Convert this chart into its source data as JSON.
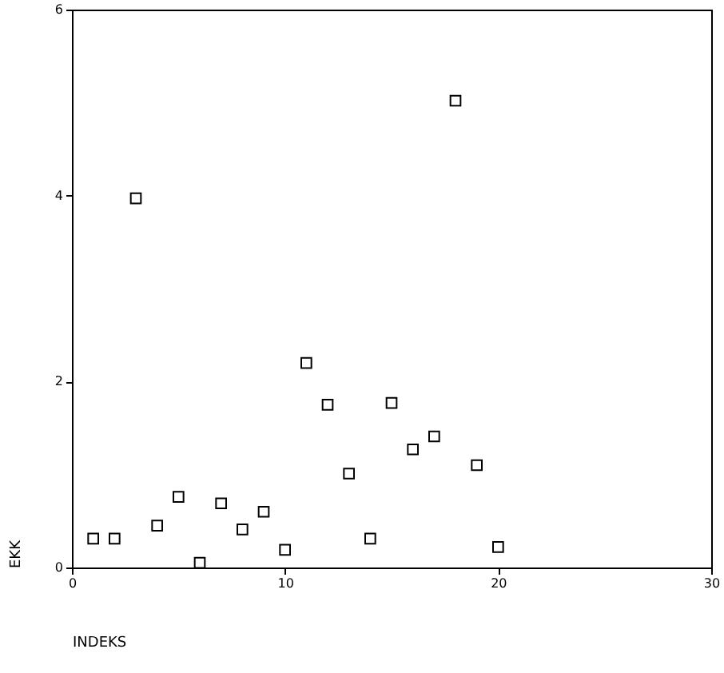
{
  "chart_data": {
    "type": "scatter",
    "xlabel": "INDEKS",
    "ylabel": "EKK",
    "x": [
      1,
      2,
      3,
      4,
      5,
      6,
      7,
      8,
      9,
      10,
      11,
      12,
      13,
      14,
      15,
      16,
      17,
      18,
      19,
      20
    ],
    "values": [
      0.31,
      0.31,
      3.97,
      0.45,
      0.76,
      0.05,
      0.69,
      0.41,
      0.6,
      0.19,
      2.2,
      1.75,
      1.01,
      0.31,
      1.77,
      1.27,
      1.41,
      5.02,
      1.1,
      0.22
    ],
    "color": "#000000",
    "marker": "square",
    "xlim": [
      0,
      30
    ],
    "xticks": [
      0,
      10,
      20,
      30
    ],
    "ylim": [
      0,
      6
    ],
    "yticks": [
      0,
      2,
      4,
      6
    ],
    "grid": false
  }
}
